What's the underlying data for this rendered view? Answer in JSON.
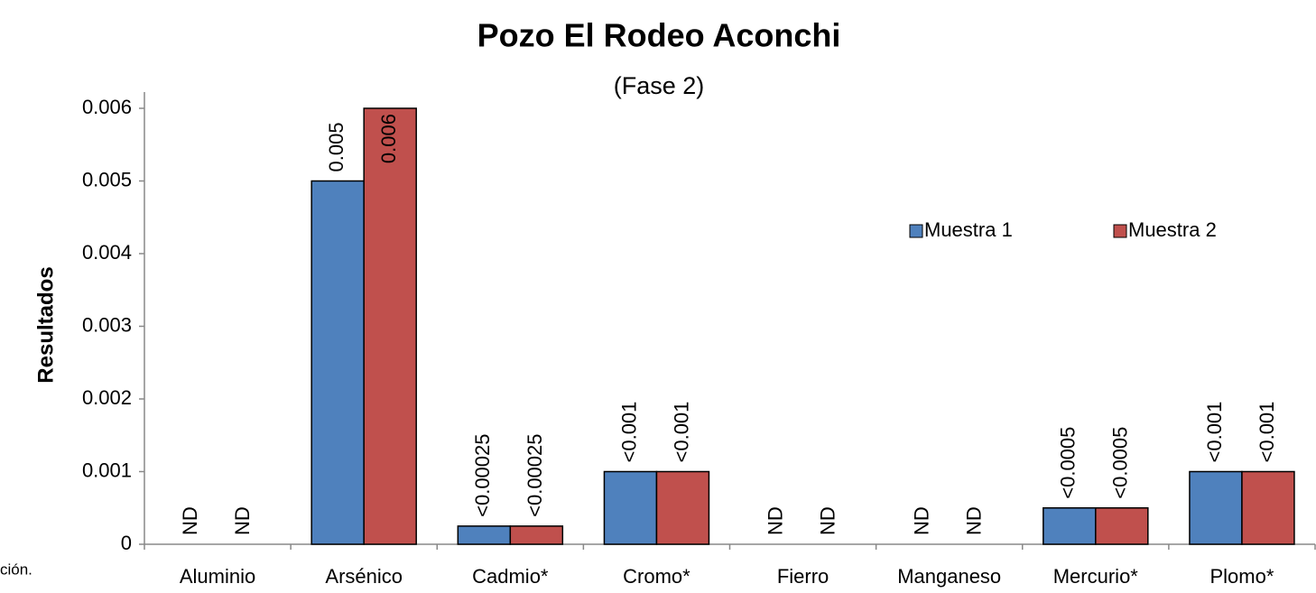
{
  "chart_data": {
    "type": "bar",
    "title": "Pozo El Rodeo Aconchi",
    "subtitle": "(Fase 2)",
    "y_label": "Resultados",
    "footnote": "ción.",
    "categories": [
      "Aluminio",
      "Arsénico",
      "Cadmio*",
      "Cromo*",
      "Fierro",
      "Manganeso",
      "Mercurio*",
      "Plomo*"
    ],
    "series": [
      {
        "name": "Muestra 1",
        "color": "#4f81bd",
        "values": [
          null,
          0.005,
          0.00025,
          0.001,
          null,
          null,
          0.0005,
          0.001
        ],
        "value_labels": [
          "ND",
          "0.005",
          "<0.00025",
          "<0.001",
          "ND",
          "ND",
          "<0.0005",
          "<0.001"
        ]
      },
      {
        "name": "Muestra 2",
        "color": "#c0504d",
        "values": [
          null,
          0.006,
          0.00025,
          0.001,
          null,
          null,
          0.0005,
          0.001
        ],
        "value_labels": [
          "ND",
          "0.006",
          "<0.00025",
          "<0.001",
          "ND",
          "ND",
          "<0.0005",
          "<0.001"
        ]
      }
    ],
    "ylim": [
      0,
      0.006
    ],
    "yticks": [
      0,
      0.001,
      0.002,
      0.003,
      0.004,
      0.005,
      0.006
    ],
    "grid": false
  }
}
